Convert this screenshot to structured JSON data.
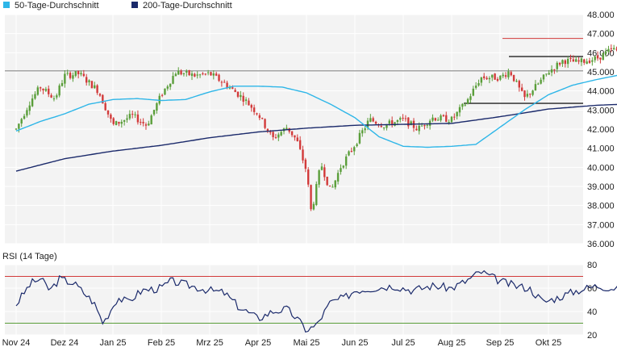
{
  "chart_data": [
    {
      "type": "candlestick",
      "ylim": [
        36.0,
        48.0
      ],
      "yticks": [
        "36.000",
        "37.000",
        "38.000",
        "39.000",
        "40.000",
        "41.000",
        "42.000",
        "43.000",
        "44.000",
        "45.000",
        "46.000",
        "47.000",
        "48.000"
      ],
      "legend": [
        {
          "name": "50-Tage-Durchschnitt",
          "color": "#2eb6e8"
        },
        {
          "name": "200-Tage-Durchschnitt",
          "color": "#1b2a6b"
        }
      ],
      "colors": {
        "up": "#5a9e3a",
        "down": "#d23a3a",
        "sma50": "#2eb6e8",
        "sma200": "#1b2a6b",
        "level": "#222222",
        "level_top": "#d23a3a"
      },
      "levels": [
        {
          "value": 46.75,
          "from": "Sep 25"
        },
        {
          "value": 45.8,
          "from": "Sep 25"
        },
        {
          "value": 45.05,
          "from": "Nov 24"
        },
        {
          "value": 43.35,
          "from": "Aug 25"
        }
      ],
      "sma50": [
        [
          0,
          41.9
        ],
        [
          0.5,
          42.4
        ],
        [
          1,
          42.8
        ],
        [
          1.5,
          43.3
        ],
        [
          2,
          43.55
        ],
        [
          2.5,
          43.6
        ],
        [
          3,
          43.5
        ],
        [
          3.5,
          43.55
        ],
        [
          4,
          43.95
        ],
        [
          4.5,
          44.25
        ],
        [
          5,
          44.25
        ],
        [
          5.5,
          44.2
        ],
        [
          6,
          43.9
        ],
        [
          6.5,
          43.3
        ],
        [
          7,
          42.6
        ],
        [
          7.5,
          41.6
        ],
        [
          8,
          41.1
        ],
        [
          8.5,
          41.05
        ],
        [
          9,
          41.1
        ],
        [
          9.5,
          41.2
        ],
        [
          10,
          42.1
        ],
        [
          10.5,
          43.0
        ],
        [
          11,
          43.8
        ],
        [
          11.5,
          44.3
        ],
        [
          12,
          44.6
        ],
        [
          12.5,
          44.85
        ],
        [
          13,
          45.35
        ]
      ],
      "sma200": [
        [
          0,
          39.8
        ],
        [
          1,
          40.45
        ],
        [
          2,
          40.85
        ],
        [
          3,
          41.15
        ],
        [
          4,
          41.55
        ],
        [
          5,
          41.85
        ],
        [
          6,
          42.05
        ],
        [
          7,
          42.2
        ],
        [
          8,
          42.25
        ],
        [
          9,
          42.3
        ],
        [
          10,
          42.65
        ],
        [
          11,
          43.05
        ],
        [
          12,
          43.25
        ],
        [
          13,
          43.35
        ]
      ],
      "anchors": [
        [
          0,
          42.0
        ],
        [
          0.3,
          43.5
        ],
        [
          0.5,
          44.2
        ],
        [
          0.8,
          43.6
        ],
        [
          1.0,
          44.8
        ],
        [
          1.3,
          44.9
        ],
        [
          1.7,
          44.0
        ],
        [
          2.0,
          42.2
        ],
        [
          2.4,
          42.7
        ],
        [
          2.7,
          42.2
        ],
        [
          3.0,
          43.8
        ],
        [
          3.3,
          45.0
        ],
        [
          3.7,
          44.8
        ],
        [
          4.0,
          44.9
        ],
        [
          4.3,
          44.4
        ],
        [
          4.7,
          43.6
        ],
        [
          5.0,
          42.8
        ],
        [
          5.3,
          41.5
        ],
        [
          5.6,
          42.1
        ],
        [
          5.8,
          41.4
        ],
        [
          6.0,
          39.8
        ],
        [
          6.1,
          37.6
        ],
        [
          6.3,
          40.2
        ],
        [
          6.5,
          38.7
        ],
        [
          6.7,
          40.0
        ],
        [
          7.0,
          41.2
        ],
        [
          7.3,
          42.5
        ],
        [
          7.6,
          42.2
        ],
        [
          8.0,
          42.5
        ],
        [
          8.3,
          42.0
        ],
        [
          8.6,
          42.6
        ],
        [
          9.0,
          42.5
        ],
        [
          9.3,
          43.4
        ],
        [
          9.6,
          44.7
        ],
        [
          10.0,
          44.7
        ],
        [
          10.2,
          45.05
        ],
        [
          10.5,
          43.6
        ],
        [
          10.8,
          44.4
        ],
        [
          11.0,
          45.0
        ],
        [
          11.3,
          45.6
        ],
        [
          11.6,
          45.5
        ],
        [
          12.0,
          45.7
        ],
        [
          12.3,
          46.15
        ],
        [
          12.6,
          46.2
        ],
        [
          12.8,
          46.55
        ]
      ],
      "rsi_title": "RSI (14 Tage)",
      "rsi_ylim": [
        20,
        80
      ],
      "rsi_yticks": [
        "20",
        "40",
        "60",
        "80"
      ],
      "rsi_bands": [
        {
          "value": 70,
          "color": "#d23a3a"
        },
        {
          "value": 30,
          "color": "#5a9e3a"
        }
      ],
      "rsi_anchors": [
        [
          0,
          46
        ],
        [
          0.3,
          64
        ],
        [
          0.5,
          68
        ],
        [
          0.7,
          58
        ],
        [
          0.9,
          68
        ],
        [
          1.2,
          64
        ],
        [
          1.6,
          48
        ],
        [
          1.8,
          30
        ],
        [
          2.1,
          52
        ],
        [
          2.3,
          48
        ],
        [
          2.6,
          58
        ],
        [
          3.0,
          60
        ],
        [
          3.2,
          66
        ],
        [
          3.6,
          62
        ],
        [
          4.0,
          58
        ],
        [
          4.3,
          56
        ],
        [
          4.6,
          44
        ],
        [
          5.0,
          34
        ],
        [
          5.3,
          40
        ],
        [
          5.6,
          42
        ],
        [
          5.8,
          34
        ],
        [
          6.0,
          24
        ],
        [
          6.2,
          28
        ],
        [
          6.5,
          48
        ],
        [
          6.8,
          52
        ],
        [
          7.0,
          58
        ],
        [
          7.4,
          60
        ],
        [
          7.8,
          62
        ],
        [
          8.2,
          58
        ],
        [
          8.6,
          62
        ],
        [
          9.0,
          60
        ],
        [
          9.3,
          66
        ],
        [
          9.6,
          74
        ],
        [
          10.0,
          66
        ],
        [
          10.3,
          62
        ],
        [
          10.6,
          60
        ],
        [
          10.9,
          48
        ],
        [
          11.2,
          52
        ],
        [
          11.6,
          58
        ],
        [
          12.0,
          62
        ],
        [
          12.3,
          60
        ],
        [
          12.6,
          62
        ],
        [
          12.8,
          68
        ]
      ],
      "xticks": [
        "Nov 24",
        "Dez 24",
        "Jan 25",
        "Feb 25",
        "Mrz 25",
        "Apr 25",
        "Mai 25",
        "Jun 25",
        "Jul 25",
        "Aug 25",
        "Sep 25",
        "Okt 25"
      ],
      "grid": true
    }
  ]
}
